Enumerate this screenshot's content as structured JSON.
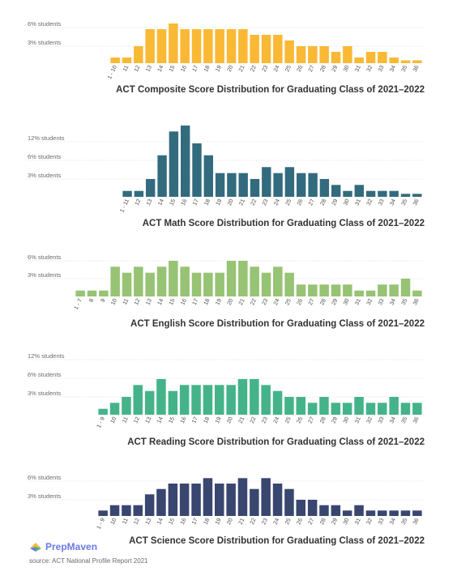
{
  "brand": {
    "name": "PrepMaven"
  },
  "source": "source: ACT National Profile Report 2021",
  "chart_data": [
    {
      "type": "bar",
      "title": "ACT Composite Score Distribution for Graduating Class of 2021–2022",
      "color": "#f9b935",
      "grid_labels": [
        "6% students",
        "3% students"
      ],
      "grid_values": [
        6,
        3
      ],
      "ylim": [
        0,
        7
      ],
      "categories": [
        "1 - 10",
        "11",
        "12",
        "13",
        "14",
        "15",
        "16",
        "17",
        "18",
        "19",
        "20",
        "21",
        "22",
        "23",
        "24",
        "25",
        "26",
        "27",
        "28",
        "29",
        "30",
        "31",
        "32",
        "33",
        "34",
        "35",
        "36"
      ],
      "values": [
        1,
        1,
        3,
        6,
        6,
        7,
        6,
        6,
        6,
        6,
        6,
        6,
        5,
        5,
        5,
        4,
        3,
        3,
        3,
        2,
        3,
        1,
        2,
        2,
        1,
        0.5,
        0.5
      ]
    },
    {
      "type": "bar",
      "title": "ACT Math Score Distribution for Graduating Class of 2021–2022",
      "color": "#336b7e",
      "grid_labels": [
        "12% students",
        "6% students",
        "3% students"
      ],
      "grid_values": [
        12,
        6,
        3
      ],
      "ylim": [
        0,
        15
      ],
      "categories": [
        "1 - 11",
        "12",
        "13",
        "14",
        "15",
        "16",
        "17",
        "18",
        "19",
        "20",
        "21",
        "22",
        "23",
        "24",
        "25",
        "26",
        "27",
        "28",
        "29",
        "30",
        "31",
        "32",
        "33",
        "34",
        "35",
        "36"
      ],
      "values": [
        1,
        1,
        3,
        7,
        11,
        12,
        9,
        7,
        4,
        4,
        4,
        3,
        5,
        4,
        5,
        4,
        4,
        3,
        2,
        1,
        2,
        1,
        1,
        1,
        0.5,
        0.5
      ]
    },
    {
      "type": "bar",
      "title": "ACT English Score Distribution for Graduating Class of 2021–2022",
      "color": "#97c374",
      "grid_labels": [
        "6% students",
        "3% students"
      ],
      "grid_values": [
        6,
        3
      ],
      "ylim": [
        0,
        7
      ],
      "categories": [
        "1 - 7",
        "8",
        "9",
        "10",
        "11",
        "12",
        "13",
        "14",
        "15",
        "16",
        "17",
        "18",
        "19",
        "20",
        "21",
        "22",
        "23",
        "24",
        "25",
        "26",
        "27",
        "28",
        "29",
        "30",
        "31",
        "32",
        "33",
        "34",
        "35",
        "36"
      ],
      "values": [
        1,
        1,
        1,
        5,
        4,
        5,
        4,
        5,
        6,
        5,
        4,
        4,
        4,
        6,
        6,
        5,
        4,
        5,
        4,
        2,
        2,
        2,
        2,
        2,
        1,
        1,
        2,
        2,
        3,
        1
      ]
    },
    {
      "type": "bar",
      "title": "ACT Reading Score Distribution for Graduating Class of 2021–2022",
      "color": "#45b38a",
      "grid_labels": [
        "12% students",
        "6% students",
        "3% students"
      ],
      "grid_values": [
        12,
        6,
        3
      ],
      "ylim": [
        0,
        12
      ],
      "categories": [
        "1 - 9",
        "10",
        "11",
        "12",
        "13",
        "14",
        "15",
        "16",
        "17",
        "18",
        "19",
        "20",
        "21",
        "22",
        "23",
        "24",
        "25",
        "26",
        "27",
        "28",
        "29",
        "30",
        "31",
        "32",
        "33",
        "34",
        "35",
        "36"
      ],
      "values": [
        1,
        2,
        3,
        5,
        4,
        6,
        4,
        5,
        5,
        5,
        5,
        5,
        6,
        6,
        5,
        4,
        3,
        3,
        2,
        3,
        2,
        2,
        3,
        2,
        2,
        3,
        2,
        2
      ]
    },
    {
      "type": "bar",
      "title": "ACT Science Score Distribution for Graduating Class of 2021–2022",
      "color": "#394670",
      "grid_labels": [
        "6% students",
        "3% students"
      ],
      "grid_values": [
        6,
        3
      ],
      "ylim": [
        0,
        7
      ],
      "categories": [
        "1 - 9",
        "10",
        "11",
        "12",
        "13",
        "14",
        "15",
        "16",
        "17",
        "18",
        "19",
        "20",
        "21",
        "22",
        "23",
        "24",
        "25",
        "26",
        "27",
        "28",
        "29",
        "30",
        "31",
        "32",
        "33",
        "34",
        "35",
        "36"
      ],
      "values": [
        1,
        2,
        2,
        2,
        4,
        5,
        6,
        6,
        6,
        7,
        6,
        6,
        7,
        5,
        7,
        6,
        5,
        3,
        3,
        2,
        2,
        1,
        2,
        1,
        1,
        1,
        1,
        1
      ]
    }
  ]
}
